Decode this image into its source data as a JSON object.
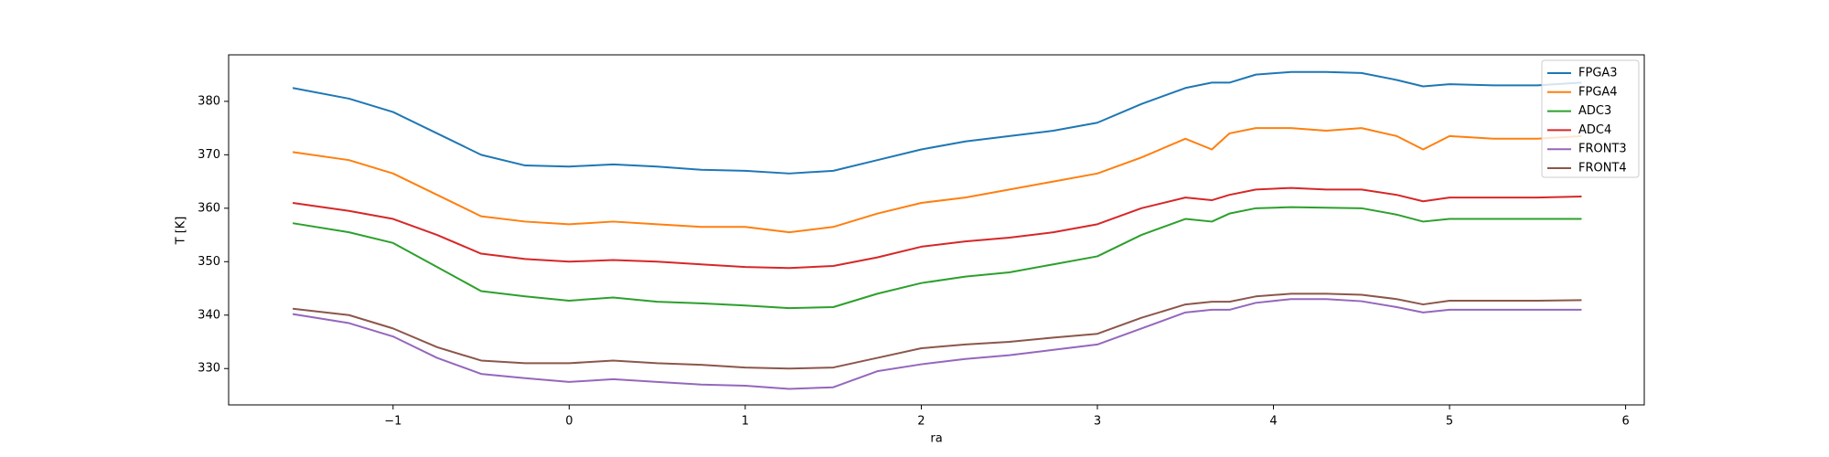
{
  "chart_data": {
    "type": "line",
    "x_label": "ra",
    "y_label": "T [K]",
    "x": [
      -1.57,
      -1.25,
      -1.0,
      -0.75,
      -0.5,
      -0.25,
      0,
      0.25,
      0.5,
      0.75,
      1.0,
      1.25,
      1.5,
      1.75,
      2.0,
      2.25,
      2.5,
      2.75,
      3.0,
      3.25,
      3.5,
      3.65,
      3.75,
      3.9,
      4.1,
      4.3,
      4.5,
      4.7,
      4.85,
      5.0,
      5.25,
      5.5,
      5.75
    ],
    "series": [
      {
        "name": "FPGA3",
        "color": "#1f77b4",
        "values": [
          382.5,
          380.5,
          378,
          374,
          370,
          368,
          367.8,
          368.2,
          367.8,
          367.2,
          367,
          366.5,
          367,
          369,
          371,
          372.5,
          373.5,
          374.5,
          376,
          379.5,
          382.5,
          383.5,
          383.5,
          385,
          385.5,
          385.5,
          385.3,
          384,
          382.8,
          383.2,
          383,
          383,
          383.5
        ]
      },
      {
        "name": "FPGA4",
        "color": "#ff7f0e",
        "values": [
          370.5,
          369,
          366.5,
          362.5,
          358.5,
          357.5,
          357,
          357.5,
          357,
          356.5,
          356.5,
          355.5,
          356.5,
          359,
          361,
          362,
          363.5,
          365,
          366.5,
          369.5,
          373,
          371,
          374,
          375,
          375,
          374.5,
          375,
          373.5,
          371,
          373.5,
          373,
          373,
          373.5
        ]
      },
      {
        "name": "ADC3",
        "color": "#2ca02c",
        "values": [
          357.2,
          355.5,
          353.5,
          349,
          344.5,
          343.5,
          342.7,
          343.3,
          342.5,
          342.2,
          341.8,
          341.3,
          341.5,
          344,
          346,
          347.2,
          348,
          349.5,
          351,
          355,
          358,
          357.5,
          359,
          360,
          360.2,
          360.1,
          360,
          358.8,
          357.5,
          358,
          358,
          358,
          358
        ]
      },
      {
        "name": "ADC4",
        "color": "#d62728",
        "values": [
          361,
          359.5,
          358,
          355,
          351.5,
          350.5,
          350,
          350.3,
          350,
          349.5,
          349,
          348.8,
          349.2,
          350.8,
          352.8,
          353.8,
          354.5,
          355.5,
          357,
          360,
          362,
          361.5,
          362.5,
          363.5,
          363.8,
          363.5,
          363.5,
          362.5,
          361.3,
          362,
          362,
          362,
          362.2
        ]
      },
      {
        "name": "FRONT3",
        "color": "#9467bd",
        "values": [
          340.2,
          338.5,
          336,
          332,
          329,
          328.2,
          327.5,
          328,
          327.5,
          327,
          326.8,
          326.2,
          326.5,
          329.5,
          330.8,
          331.8,
          332.5,
          333.5,
          334.5,
          337.5,
          340.5,
          341,
          341,
          342.3,
          343,
          343,
          342.6,
          341.5,
          340.5,
          341,
          341,
          341,
          341
        ]
      },
      {
        "name": "FRONT4",
        "color": "#8c564b",
        "values": [
          341.2,
          340,
          337.5,
          334,
          331.5,
          331,
          331,
          331.5,
          331,
          330.7,
          330.2,
          330,
          330.2,
          332,
          333.8,
          334.5,
          335,
          335.8,
          336.5,
          339.5,
          342,
          342.5,
          342.5,
          343.5,
          344,
          344,
          343.8,
          343,
          342,
          342.7,
          342.7,
          342.7,
          342.8
        ]
      }
    ],
    "xlim": [
      -1.934,
      6.106
    ],
    "ylim": [
      323.2,
      388.7
    ],
    "xticks": [
      {
        "value": -1,
        "label": "−1"
      },
      0,
      1,
      2,
      3,
      4,
      5,
      6
    ],
    "yticks": [
      330,
      340,
      350,
      360,
      370,
      380
    ],
    "legend": "upper right"
  }
}
